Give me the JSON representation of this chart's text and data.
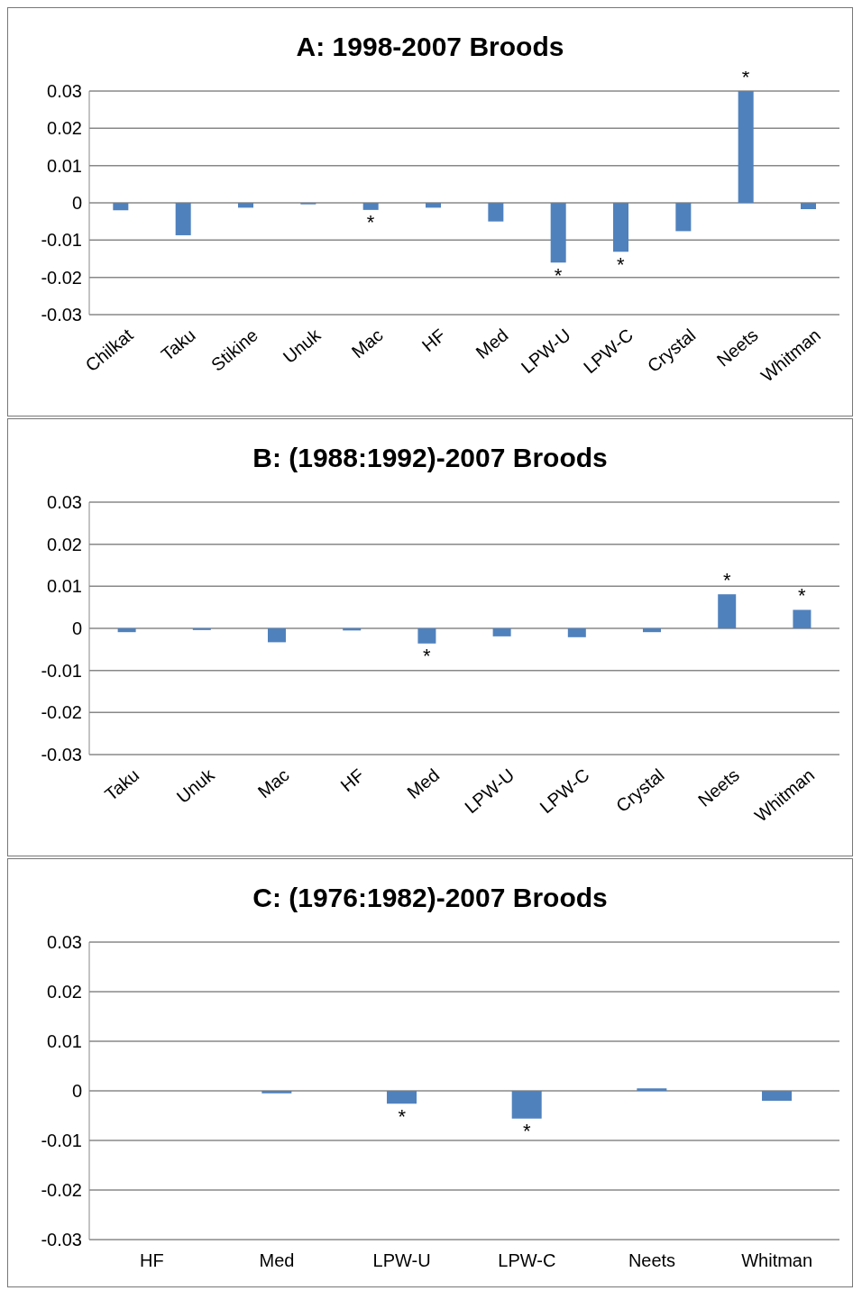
{
  "chart_data": [
    {
      "type": "bar",
      "title": "A: 1998-2007 Broods",
      "categories": [
        "Chilkat",
        "Taku",
        "Stikine",
        "Unuk",
        "Mac",
        "HF",
        "Med",
        "LPW-U",
        "LPW-C",
        "Crystal",
        "Neets",
        "Whitman"
      ],
      "values": [
        -0.002,
        -0.0087,
        -0.0013,
        -0.0004,
        -0.0019,
        -0.0013,
        -0.005,
        -0.016,
        -0.0131,
        -0.0076,
        0.03,
        -0.0017
      ],
      "color": "#4f81bd",
      "ylim": [
        -0.03,
        0.03
      ],
      "yticks": [
        -0.03,
        -0.02,
        -0.01,
        0,
        0.01,
        0.02,
        0.03
      ],
      "grid": "y",
      "annotations": [
        {
          "text": "*",
          "x": "Mac",
          "y": -0.0019
        },
        {
          "text": "*",
          "x": "LPW-U",
          "y": -0.016
        },
        {
          "text": "*",
          "x": "LPW-C",
          "y": -0.0131
        },
        {
          "text": "*",
          "x": "Neets",
          "y": 0.03
        }
      ]
    },
    {
      "type": "bar",
      "title": "B: (1988:1992)-2007 Broods",
      "categories": [
        "Taku",
        "Unuk",
        "Mac",
        "HF",
        "Med",
        "LPW-U",
        "LPW-C",
        "Crystal",
        "Neets",
        "Whitman"
      ],
      "values": [
        -0.0009,
        -0.0004,
        -0.0033,
        -0.0005,
        -0.0036,
        -0.0019,
        -0.0021,
        -0.0009,
        0.0081,
        0.0044
      ],
      "color": "#4f81bd",
      "ylim": [
        -0.03,
        0.03
      ],
      "yticks": [
        -0.03,
        -0.02,
        -0.01,
        0,
        0.01,
        0.02,
        0.03
      ],
      "grid": "y",
      "annotations": [
        {
          "text": "*",
          "x": "Med",
          "y": -0.0036
        },
        {
          "text": "*",
          "x": "Neets",
          "y": 0.0081
        },
        {
          "text": "*",
          "x": "Whitman",
          "y": 0.0044
        }
      ]
    },
    {
      "type": "bar",
      "title": "C: (1976:1982)-2007 Broods",
      "categories": [
        "HF",
        "Med",
        "LPW-U",
        "LPW-C",
        "Neets",
        "Whitman"
      ],
      "values": [
        0,
        -0.0005,
        -0.0026,
        -0.0056,
        0.0005,
        -0.002
      ],
      "color": "#4f81bd",
      "ylim": [
        -0.03,
        0.03
      ],
      "yticks": [
        -0.03,
        -0.02,
        -0.01,
        0,
        0.01,
        0.02,
        0.03
      ],
      "grid": "y",
      "annotations": [
        {
          "text": "*",
          "x": "LPW-U",
          "y": -0.0026
        },
        {
          "text": "*",
          "x": "LPW-C",
          "y": -0.0056
        }
      ]
    }
  ]
}
